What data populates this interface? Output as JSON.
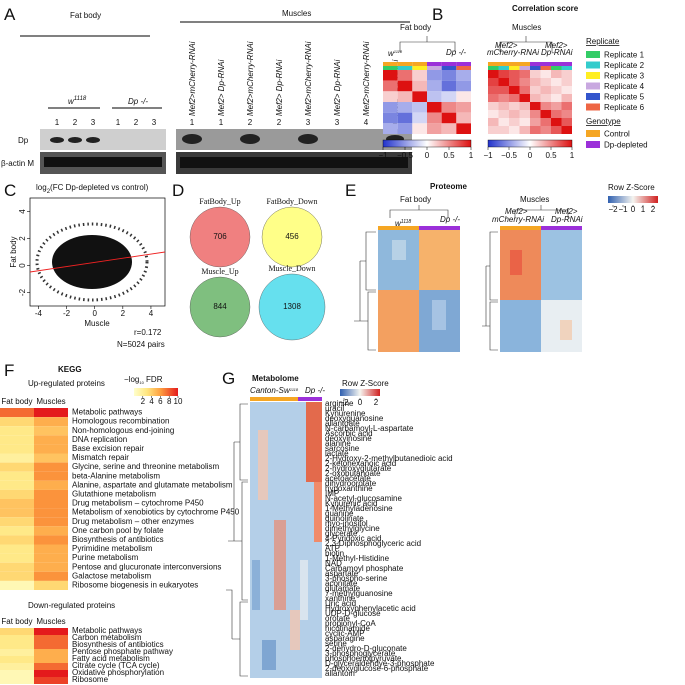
{
  "A": {
    "label": "A",
    "fat_body": "Fat body",
    "muscles": "Muscles",
    "w1118": {
      "base": "w",
      "sup": "1118"
    },
    "dp": "Dp -/-",
    "fat_lanes": [
      "1",
      "2",
      "3",
      "1",
      "2",
      "3"
    ],
    "muscle_lanes": [
      "Mef2>mCherry-RNAi",
      "Mef2> Dp-RNAi",
      "Mef2>mCherry-RNAi",
      "Mef2> Dp-RNAi",
      "Mef2>mCherry-RNAi",
      "Mef2> Dp-RNAi",
      "Mef2>mCherry-RNAi",
      "Mef2> Dp-RNAi"
    ],
    "muscle_numbers": [
      "1",
      "1",
      "2",
      "2",
      "3",
      "3",
      "4",
      "4"
    ],
    "rows": [
      "Dp",
      "β-actin M"
    ]
  },
  "B": {
    "label": "B",
    "title": "Correlation score",
    "fat_body": "Fat body",
    "muscles": "Muscles",
    "w1118": {
      "base": "w",
      "sup": "1118"
    },
    "dp": "Dp -/-",
    "mef_control": [
      "Mef2>",
      "mCherry-RNAi"
    ],
    "mef_dp": [
      "Mef2>",
      "Dp-RNAi"
    ],
    "fat_matrix": [
      [
        1,
        0.6,
        0.2,
        -0.5,
        -0.6,
        -0.4
      ],
      [
        0.6,
        1,
        0.3,
        -0.4,
        -0.7,
        -0.5
      ],
      [
        0.2,
        0.3,
        1,
        -0.3,
        -0.2,
        0.1
      ],
      [
        -0.5,
        -0.4,
        -0.3,
        1,
        0.5,
        0.4
      ],
      [
        -0.6,
        -0.7,
        -0.2,
        0.5,
        1,
        0.3
      ],
      [
        -0.4,
        -0.5,
        0.1,
        0.4,
        0.3,
        1
      ]
    ],
    "muscle_matrix": [
      [
        1,
        0.8,
        0.7,
        0.6,
        0.2,
        0.1,
        0.3,
        0.2
      ],
      [
        0.8,
        1,
        0.7,
        0.5,
        0.3,
        0.2,
        0.1,
        0.2
      ],
      [
        0.7,
        0.7,
        1,
        0.6,
        0.2,
        0.3,
        0.2,
        0.1
      ],
      [
        0.6,
        0.5,
        0.6,
        1,
        0.3,
        0.2,
        0.1,
        0.3
      ],
      [
        0.2,
        0.3,
        0.2,
        0.3,
        1,
        0.5,
        0.4,
        0.6
      ],
      [
        0.1,
        0.2,
        0.3,
        0.2,
        0.5,
        1,
        0.6,
        0.5
      ],
      [
        0.3,
        0.1,
        0.2,
        0.1,
        0.4,
        0.6,
        1,
        0.7
      ],
      [
        0.2,
        0.2,
        0.1,
        0.3,
        0.6,
        0.5,
        0.7,
        1
      ]
    ],
    "clim": [
      -1,
      1
    ],
    "ticks": [
      {
        "value": -1,
        "label": "−1"
      },
      {
        "value": -0.5,
        "label": "−0.5"
      },
      0,
      0.5,
      1
    ],
    "replicate_title": "Replicate",
    "replicates": [
      {
        "name": "Replicate 1",
        "color": "#33cc66"
      },
      {
        "name": "Replicate 2",
        "color": "#33cccc"
      },
      {
        "name": "Replicate 3",
        "color": "#ffee22"
      },
      {
        "name": "Replicate 4",
        "color": "#c8a8e0"
      },
      {
        "name": "Replicate 5",
        "color": "#3355cc"
      },
      {
        "name": "Replicate 6",
        "color": "#ee6644"
      }
    ],
    "genotype_title": "Genotype",
    "genotypes": [
      {
        "name": "Control",
        "color": "#f5a623"
      },
      {
        "name": "Dp-depleted",
        "color": "#9b30d9"
      }
    ]
  },
  "C": {
    "label": "C",
    "title": {
      "a": "log",
      "sub": "2",
      "b": "(FC Dp-depleted vs control)"
    },
    "ylabel": "Fat body",
    "xlabel": "Muscle",
    "xlim": [
      -4.6,
      5
    ],
    "xticks": [
      -4,
      -2,
      0,
      2,
      4
    ],
    "ylim": [
      -3,
      5
    ],
    "yticks": [
      -2,
      0,
      2,
      4
    ],
    "r": "r=0.172",
    "n": "N=5024 pairs"
  },
  "D": {
    "label": "D",
    "sets": [
      {
        "name": "FatBody_Up",
        "count": 706,
        "color": "#f08080"
      },
      {
        "name": "FatBody_Down",
        "count": 456,
        "color": "#ffff88"
      },
      {
        "name": "Muscle_Up",
        "count": 844,
        "color": "#7fbf7f"
      },
      {
        "name": "Muscle_Down",
        "count": 1308,
        "color": "#66e0ee"
      }
    ]
  },
  "E": {
    "label": "E",
    "title": "Proteome",
    "fat_body": "Fat body",
    "muscles": "Muscles",
    "w1118": {
      "base": "w",
      "sup": "1118"
    },
    "dp": "Dp -/-",
    "mef_control": [
      "Mef2>",
      "mCherry-RNAi"
    ],
    "mef_dp": [
      "Mef2>",
      "Dp-RNAi"
    ],
    "scale_title": "Row Z-Score",
    "clim": [
      -2.5,
      2.5
    ],
    "ticks": [
      {
        "value": -2,
        "label": "−2"
      },
      {
        "value": -1,
        "label": "−1"
      },
      0,
      1,
      2
    ]
  },
  "F": {
    "label": "F",
    "title": "KEGG",
    "up_title": "Up-regulated proteins",
    "down_title": "Down-regulated proteins",
    "scale_title": {
      "a": "−log",
      "sub": "10",
      "b": " FDR"
    },
    "columns": [
      "Fat body",
      "Muscles"
    ],
    "clim": [
      0,
      10
    ],
    "ticks": [
      2,
      4,
      6,
      8,
      10
    ],
    "up": {
      "pathways": [
        "Metabolic pathways",
        "Homologous recombination",
        "Non-homologous end-joining",
        "DNA replication",
        "Base excision repair",
        "Mismatch repair",
        "Glycine, serine and threonine metabolism",
        "beta-Alanine metabolism",
        "Alanine, aspartate and glutamate metabolism",
        "Glutathione metabolism",
        "Drug metabolism – cytochrome P450",
        "Metabolism of xenobiotics by cytochrome P450",
        "Drug metabolism – other enzymes",
        "One carbon pool by folate",
        "Biosynthesis of antibiotics",
        "Pyrimidine metabolism",
        "Purine metabolism",
        "Pentose and glucuronate interconversions",
        "Galactose metabolism",
        "Ribosome biogenesis in eukaryotes"
      ],
      "fat_body": [
        8,
        4,
        3,
        3,
        3,
        2,
        4,
        3,
        3,
        4,
        5,
        5,
        4,
        3,
        4,
        3,
        3,
        4,
        4,
        1
      ],
      "muscles": [
        10,
        6,
        5,
        6,
        6,
        5,
        7,
        7,
        6,
        7,
        7,
        7,
        7,
        6,
        7,
        6,
        6,
        6,
        7,
        4
      ]
    },
    "down": {
      "pathways": [
        "Metabolic pathways",
        "Carbon metabolism",
        "Biosynthesis of antibiotics",
        "Pentose phosphate pathway",
        "Fatty acid metabolism",
        "Citrate cycle (TCA cycle)",
        "Oxidative phosphorylation",
        "Ribosome"
      ],
      "fat_body": [
        4,
        3,
        3,
        2,
        3,
        2,
        1,
        1
      ],
      "muscles": [
        10,
        8,
        8,
        6,
        6,
        8,
        10,
        9
      ]
    }
  },
  "G": {
    "label": "G",
    "title": "Metabolome",
    "groups": [
      "Canton-S",
      {
        "base": "w",
        "sup": "1118"
      },
      "Dp -/-"
    ],
    "scale_title": "Row Z-Score",
    "clim": [
      -2.5,
      2.5
    ],
    "ticks": [
      {
        "value": -2,
        "label": "−2"
      },
      0,
      2
    ],
    "metabolites": [
      "arginine",
      "uracil",
      "Kynurenine",
      "deoxyguanosine",
      "allantoate",
      "N-carbamoyl-L-aspartate",
      "Ascorbic acid",
      "deoxyinosine",
      "alanine",
      "sarcosine",
      "lactate",
      "2-Hydroxy-2-methylbutanedioic acid",
      "2-ketohexanoic acid",
      "2-hydroxyglutarate",
      "2-oxobutanoate",
      "acetoacetate",
      "dihydroorotate",
      "hypoxanthine",
      "IMP",
      "N-acetyl-glucosamine",
      "Kynurenic acid",
      "1-Methyladenosine",
      "guanine",
      "quinolinate",
      "myo-inositol",
      "dimethylglycine",
      "glycerate",
      "4-Pyridoxic acid",
      "2,3-Diphosphoglyceric acid",
      "ATP",
      "biotin",
      "1-Methyl-Histidine",
      "NAD",
      "Carbamoyl phosphate",
      "aspartate",
      "3-phospho-serine",
      "aconitate",
      "glutamate",
      "7-methylguanosine",
      "xanthine",
      "Uric acid",
      "Hydroxyphenylacetic acid",
      "UDP-D-glucose",
      "orotate",
      "propionyl-CoA",
      "nicotinamide",
      "cyclic-AMP",
      "asparagine",
      "serine",
      "2-dehydro-D-gluconate",
      "3-phosphoglycerate",
      "phosphoenolpyruvate",
      "D-glyceraldehdye-3-phosphate",
      "2-deoxyglucose-6-phosphate",
      "allantoin"
    ]
  }
}
